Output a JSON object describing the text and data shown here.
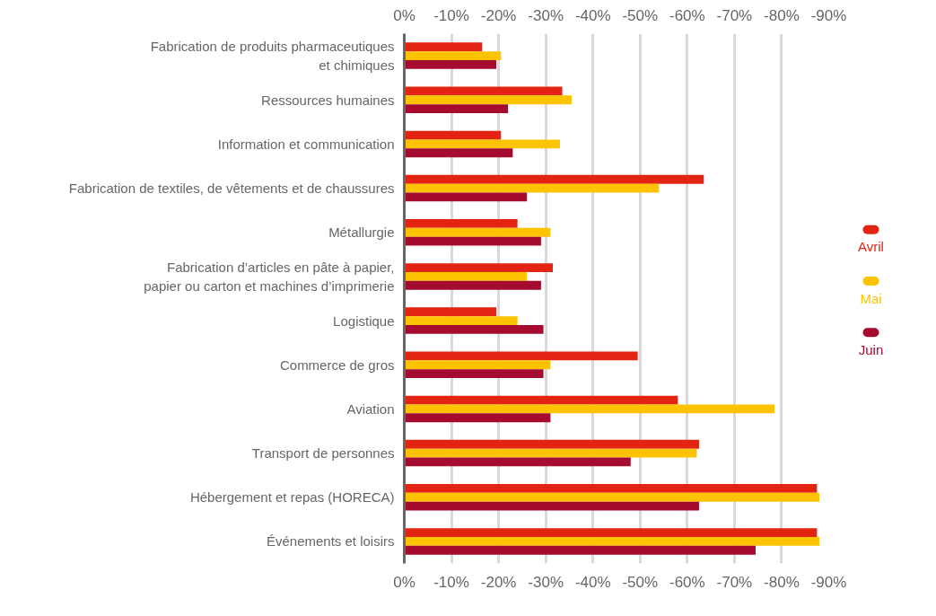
{
  "chart_data": {
    "type": "bar",
    "orientation": "horizontal",
    "categories": [
      "Fabrication de produits pharmaceutiques\net chimiques",
      "Ressources humaines",
      "Information et communication",
      "Fabrication de textiles, de vêtements et de chaussures",
      "Métallurgie",
      "Fabrication d’articles en pâte à papier,\npapier ou carton et machines d’imprimerie",
      "Logistique",
      "Commerce de gros",
      "Aviation",
      "Transport de personnes",
      "Hébergement et repas (HORECA)",
      "Événements et loisirs"
    ],
    "series": [
      {
        "name": "Avril",
        "color": "#e32413",
        "values": [
          -16.5,
          -33.5,
          -20.5,
          -63.5,
          -24,
          -31.5,
          -19.5,
          -49.5,
          -58,
          -62.5,
          -87.5,
          -87.5
        ]
      },
      {
        "name": "Mai",
        "color": "#fdc300",
        "values": [
          -20.5,
          -35.5,
          -33,
          -54,
          -31,
          -26,
          -24,
          -31,
          -78.5,
          -62,
          -88,
          -88
        ]
      },
      {
        "name": "Juin",
        "color": "#a50b2f",
        "values": [
          -19.5,
          -22,
          -23,
          -26,
          -29,
          -29,
          -29.5,
          -29.5,
          -31,
          -48,
          -62.5,
          -74.5
        ]
      }
    ],
    "xlim": [
      0,
      -90
    ],
    "xticks": [
      {
        "value": 0,
        "label": "0%"
      },
      {
        "value": -10,
        "label": "-10%"
      },
      {
        "value": -20,
        "label": "-20%"
      },
      {
        "value": -30,
        "label": "-30%"
      },
      {
        "value": -40,
        "label": "-40%"
      },
      {
        "value": -50,
        "label": "-50%"
      },
      {
        "value": -60,
        "label": "-60%"
      },
      {
        "value": -70,
        "label": "-70%"
      },
      {
        "value": -80,
        "label": "-80%"
      },
      {
        "value": -90,
        "label": "-90%"
      }
    ],
    "x2lim": [
      0,
      -90
    ],
    "x2ticks": [
      {
        "value": 0,
        "label": "0%"
      },
      {
        "value": -10,
        "label": "-10%"
      },
      {
        "value": -20,
        "label": "-20%"
      },
      {
        "value": -30,
        "label": "-30%"
      },
      {
        "value": -40,
        "label": "-40%"
      },
      {
        "value": -50,
        "label": "-50%"
      },
      {
        "value": -60,
        "label": "-60%"
      },
      {
        "value": -70,
        "label": "-70%"
      },
      {
        "value": -80,
        "label": "-80%"
      },
      {
        "value": -90,
        "label": "-90%"
      }
    ],
    "grid": "x",
    "legend": "right"
  }
}
